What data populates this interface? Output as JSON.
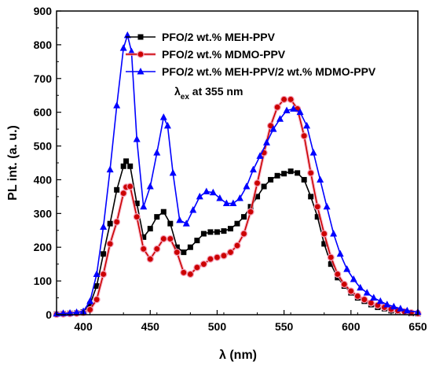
{
  "chart_data": {
    "type": "line",
    "xlabel": "λ (nm)",
    "ylabel": "PL int. (a. u.)",
    "xlim": [
      380,
      650
    ],
    "ylim": [
      0,
      900
    ],
    "xticks": [
      400,
      450,
      500,
      550,
      600,
      650
    ],
    "yticks": [
      0,
      100,
      200,
      300,
      400,
      500,
      600,
      700,
      800,
      900
    ],
    "legend_position": "top-left",
    "annotation": {
      "main": "λ",
      "sub": "ex",
      "rest": " at 355 nm"
    },
    "series": [
      {
        "name": "PFO/2 wt.% MEH-PPV",
        "color": "#000000",
        "marker": "square",
        "x": [
          380,
          385,
          390,
          395,
          400,
          405,
          410,
          415,
          420,
          425,
          430,
          432,
          435,
          440,
          445,
          450,
          455,
          460,
          465,
          470,
          475,
          480,
          485,
          490,
          495,
          500,
          505,
          510,
          515,
          520,
          525,
          530,
          535,
          540,
          545,
          550,
          555,
          560,
          565,
          570,
          575,
          580,
          585,
          590,
          595,
          600,
          605,
          610,
          615,
          620,
          625,
          630,
          635,
          640,
          645,
          650
        ],
        "y": [
          2,
          3,
          4,
          5,
          8,
          30,
          85,
          180,
          270,
          370,
          440,
          455,
          440,
          330,
          230,
          255,
          290,
          305,
          270,
          200,
          185,
          200,
          220,
          240,
          245,
          245,
          248,
          255,
          270,
          290,
          320,
          350,
          380,
          400,
          412,
          418,
          425,
          420,
          400,
          350,
          290,
          210,
          150,
          110,
          85,
          65,
          50,
          40,
          30,
          22,
          18,
          12,
          10,
          7,
          4,
          3
        ]
      },
      {
        "name": "PFO/2 wt.% MDMO-PPV",
        "color": "#cc0000",
        "marker": "circle",
        "x": [
          380,
          385,
          390,
          395,
          400,
          405,
          410,
          415,
          420,
          425,
          430,
          432,
          435,
          440,
          445,
          450,
          455,
          460,
          465,
          470,
          475,
          480,
          485,
          490,
          495,
          500,
          505,
          510,
          515,
          520,
          525,
          530,
          535,
          540,
          545,
          550,
          555,
          560,
          565,
          570,
          575,
          580,
          585,
          590,
          595,
          600,
          605,
          610,
          615,
          620,
          625,
          630,
          635,
          640,
          645,
          650
        ],
        "y": [
          1,
          2,
          3,
          4,
          6,
          15,
          45,
          120,
          210,
          275,
          360,
          378,
          380,
          290,
          195,
          165,
          195,
          225,
          225,
          185,
          125,
          120,
          140,
          150,
          165,
          170,
          175,
          185,
          205,
          240,
          305,
          390,
          480,
          560,
          615,
          638,
          638,
          610,
          530,
          420,
          320,
          240,
          170,
          120,
          90,
          70,
          55,
          45,
          35,
          28,
          22,
          16,
          12,
          9,
          6,
          4
        ]
      },
      {
        "name": "PFO/2 wt.% MEH-PPV/2 wt.% MDMO-PPV",
        "color": "#0000ff",
        "marker": "triangle",
        "x": [
          380,
          385,
          390,
          395,
          400,
          405,
          410,
          415,
          420,
          425,
          430,
          433,
          436,
          440,
          445,
          450,
          455,
          460,
          463,
          467,
          472,
          477,
          482,
          487,
          492,
          497,
          502,
          507,
          512,
          517,
          522,
          527,
          532,
          537,
          542,
          547,
          552,
          557,
          562,
          567,
          572,
          577,
          582,
          587,
          592,
          597,
          602,
          607,
          612,
          617,
          622,
          627,
          632,
          637,
          642,
          650
        ],
        "y": [
          3,
          4,
          5,
          7,
          10,
          40,
          120,
          260,
          430,
          620,
          790,
          828,
          780,
          520,
          320,
          380,
          480,
          585,
          560,
          420,
          280,
          270,
          310,
          350,
          365,
          362,
          345,
          330,
          330,
          345,
          380,
          430,
          470,
          510,
          550,
          580,
          605,
          610,
          600,
          560,
          480,
          400,
          320,
          240,
          180,
          135,
          105,
          80,
          65,
          50,
          40,
          30,
          24,
          18,
          12,
          8
        ]
      }
    ]
  }
}
